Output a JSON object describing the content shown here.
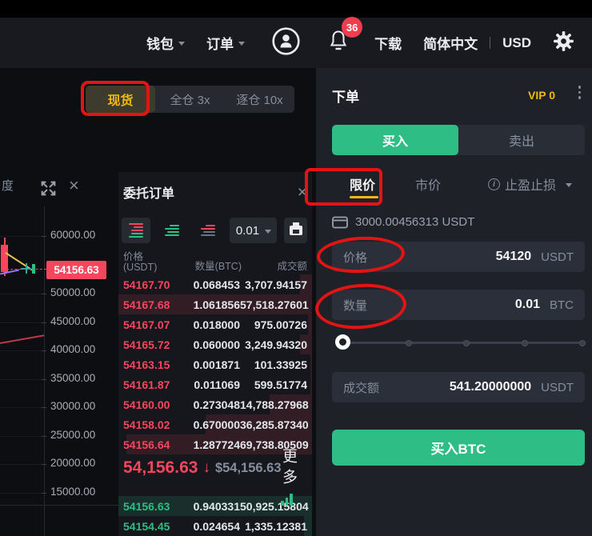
{
  "topbar": {
    "wallet": "钱包",
    "orders": "订单",
    "download": "下载",
    "language": "简体中文",
    "currency": "USD",
    "notification_count": "36"
  },
  "market_tabs": {
    "spot": "现货",
    "cross": "全仓 3x",
    "isolated": "逐仓 10x"
  },
  "chart": {
    "corner_label": "度",
    "axis_labels": [
      "60000.00",
      "50000.00",
      "45000.00",
      "40000.00",
      "35000.00",
      "30000.00",
      "25000.00",
      "20000.00",
      "15000.00"
    ],
    "price_tag": "54156.63"
  },
  "orderbook": {
    "title": "委托订单",
    "precision": "0.01",
    "headers": {
      "price_line1": "价格",
      "price_line2": "(USDT)",
      "amount": "数量(BTC)",
      "total": "成交额"
    },
    "asks": [
      {
        "price": "54167.70",
        "amount": "0.068453",
        "total": "3,707.94157",
        "depth": 6
      },
      {
        "price": "54167.68",
        "amount": "1.061856",
        "total": "57,518.27601",
        "depth": 100
      },
      {
        "price": "54167.07",
        "amount": "0.018000",
        "total": "975.00726",
        "depth": 2
      },
      {
        "price": "54165.72",
        "amount": "0.060000",
        "total": "3,249.94320",
        "depth": 6
      },
      {
        "price": "54163.15",
        "amount": "0.001871",
        "total": "101.33925",
        "depth": 1
      },
      {
        "price": "54161.87",
        "amount": "0.011069",
        "total": "599.51774",
        "depth": 1
      },
      {
        "price": "54160.00",
        "amount": "0.273048",
        "total": "14,788.27968",
        "depth": 22
      },
      {
        "price": "54158.02",
        "amount": "0.670000",
        "total": "36,285.87340",
        "depth": 55
      },
      {
        "price": "54156.64",
        "amount": "1.287724",
        "total": "69,738.80509",
        "depth": 96
      }
    ],
    "last_price": "54,156.63",
    "last_arrow": "↓",
    "last_price_usd": "$54,156.63",
    "more_label": "更多",
    "bids": [
      {
        "price": "54156.63",
        "amount": "0.940331",
        "total": "50,925.15804",
        "depth": 100
      },
      {
        "price": "54154.45",
        "amount": "0.024654",
        "total": "1,335.12381",
        "depth": 4
      }
    ]
  },
  "order_panel": {
    "title": "下单",
    "vip": "VIP 0",
    "buy_tab": "买入",
    "sell_tab": "卖出",
    "tab_limit": "限价",
    "tab_market": "市价",
    "tab_stop": "止盈止损",
    "balance": "3000.00456313 USDT",
    "price": {
      "label": "价格",
      "value": "54120",
      "unit": "USDT"
    },
    "amount": {
      "label": "数量",
      "value": "0.01",
      "unit": "BTC"
    },
    "total": {
      "label": "成交额",
      "value": "541.20000000",
      "unit": "USDT"
    },
    "submit": "买入BTC"
  },
  "colors": {
    "green": "#2ebd85",
    "red": "#f6465d",
    "gold": "#f0b90b",
    "annotation": "#e51414"
  }
}
